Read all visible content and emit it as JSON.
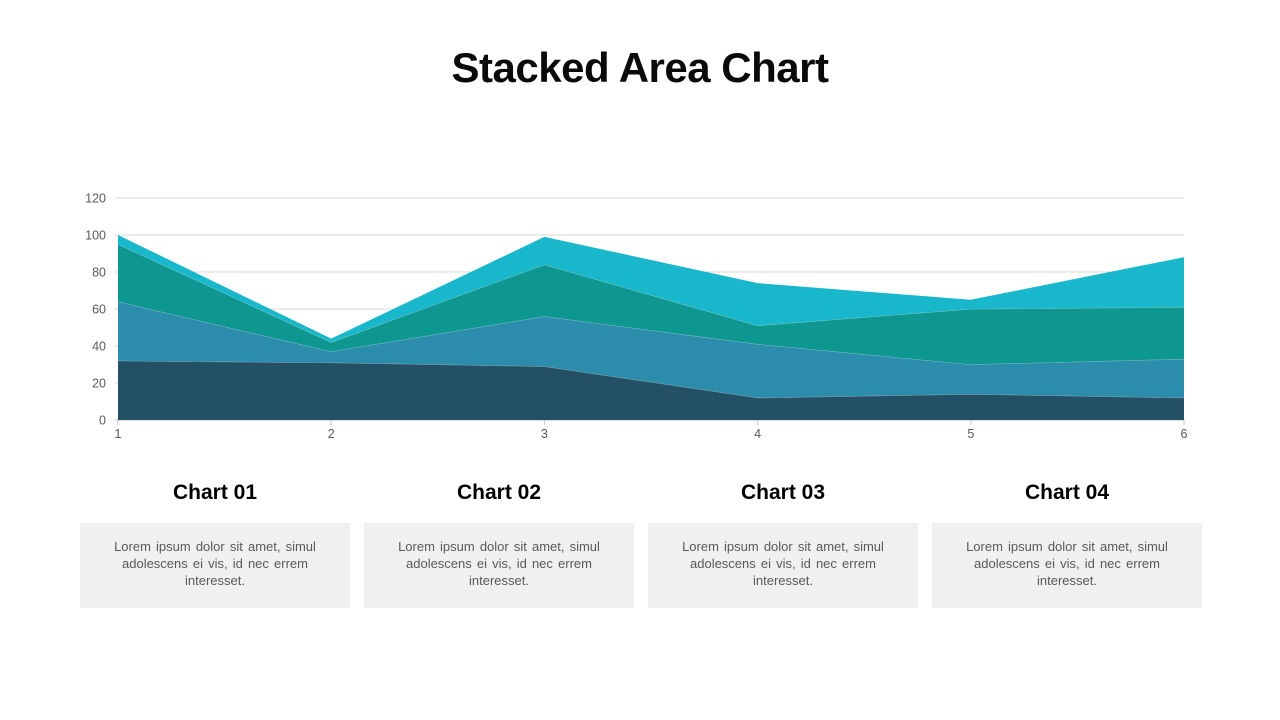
{
  "title": "Stacked Area Chart",
  "colors": {
    "background": "#ffffff",
    "gridline": "#d9d9d9",
    "axis_line": "#c6c6c6",
    "axis_text": "#595959",
    "card_box_bg": "#f0f0f0",
    "card_body_text": "#595959",
    "heading_text": "#000000"
  },
  "chart_data": {
    "type": "area",
    "stacked": true,
    "x": [
      1,
      2,
      3,
      4,
      5,
      6
    ],
    "series": [
      {
        "color": "#245066",
        "values": [
          32,
          31,
          29,
          12,
          14,
          12
        ]
      },
      {
        "color": "#2b8cab",
        "values": [
          32,
          6,
          27,
          29,
          16,
          21
        ]
      },
      {
        "color": "#0e9691",
        "values": [
          31,
          5,
          28,
          10,
          30,
          28
        ]
      },
      {
        "color": "#18b7cb",
        "values": [
          5,
          2,
          15,
          23,
          5,
          27
        ]
      }
    ],
    "ylim": [
      0,
      120
    ],
    "ytick_step": 20,
    "yticks": [
      0,
      20,
      40,
      60,
      80,
      100,
      120
    ],
    "grid": true,
    "legend": "none"
  },
  "cards": [
    {
      "heading": "Chart 01",
      "body": "Lorem ipsum dolor sit amet, simul adolescens ei vis, id nec errem interesset."
    },
    {
      "heading": "Chart 02",
      "body": "Lorem ipsum dolor sit amet, simul adolescens ei vis, id nec errem interesset."
    },
    {
      "heading": "Chart 03",
      "body": "Lorem ipsum dolor sit amet, simul adolescens ei vis, id nec errem interesset."
    },
    {
      "heading": "Chart 04",
      "body": "Lorem ipsum dolor sit amet, simul adolescens ei vis, id nec errem interesset."
    }
  ]
}
